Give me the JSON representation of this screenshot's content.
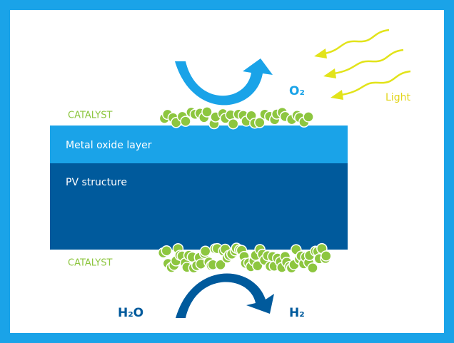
{
  "labels": {
    "catalyst_top": "CATALYST",
    "metal_oxide": "Metal oxide layer",
    "pv": "PV structure",
    "catalyst_bottom": "CATALYST",
    "o2": "O₂",
    "light": "Light",
    "h2o": "H₂O",
    "h2": "H₂"
  }
}
